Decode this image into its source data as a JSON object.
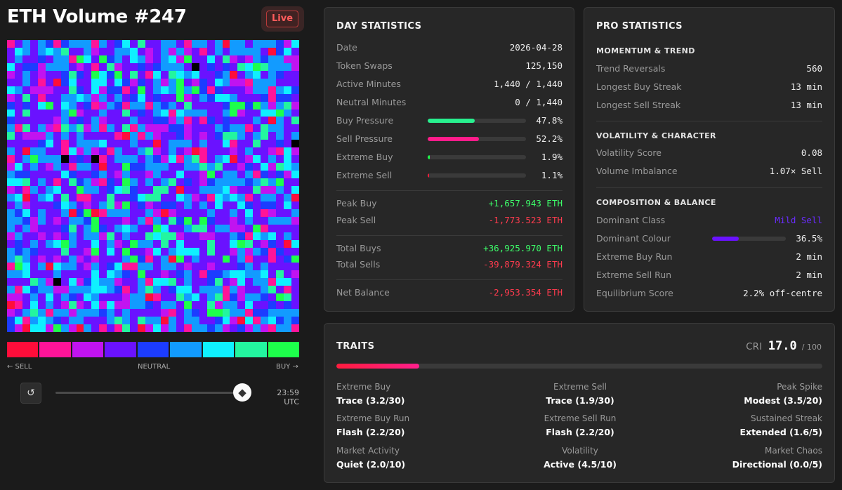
{
  "header": {
    "title": "ETH Volume #247",
    "live_label": "Live"
  },
  "palette": {
    "colors": [
      "#ff0d3a",
      "#ff1498",
      "#c113f0",
      "#6a12ff",
      "#1c3cff",
      "#129bff",
      "#0ff0ff",
      "#23f59f",
      "#1dff4b"
    ],
    "sell_label": "← SELL",
    "neutral_label": "NEUTRAL",
    "buy_label": "BUY →"
  },
  "grid_colors": [
    "#6a12ff",
    "#129bff",
    "#0ff0ff",
    "#c113f0",
    "#1c3cff",
    "#23f59f",
    "#ff1498",
    "#1dff4b",
    "#ff0d3a",
    "#000000"
  ],
  "controls": {
    "replay_icon": "↺",
    "eth_icon": "◆",
    "time": "23:59 UTC"
  },
  "day": {
    "title": "DAY STATISTICS",
    "rows": [
      {
        "label": "Date",
        "value": "2026-04-28"
      },
      {
        "label": "Token Swaps",
        "value": "125,150"
      },
      {
        "label": "Active Minutes",
        "value": "1,440 / 1,440"
      },
      {
        "label": "Neutral Minutes",
        "value": "0 / 1,440"
      }
    ],
    "bars": [
      {
        "label": "Buy Pressure",
        "value": "47.8%",
        "pct": 47.8,
        "color": "#28f08f"
      },
      {
        "label": "Sell Pressure",
        "value": "52.2%",
        "pct": 52.2,
        "color": "#ff1c8a"
      },
      {
        "label": "Extreme Buy",
        "value": "1.9%",
        "pct": 1.9,
        "color": "#1dff4b"
      },
      {
        "label": "Extreme Sell",
        "value": "1.1%",
        "pct": 1.1,
        "color": "#ff1c3d"
      }
    ],
    "peak_buy": {
      "label": "Peak Buy",
      "value": "+1,657.943 ETH"
    },
    "peak_sell": {
      "label": "Peak Sell",
      "value": "-1,773.523 ETH"
    },
    "total_buys": {
      "label": "Total Buys",
      "value": "+36,925.970 ETH"
    },
    "total_sells": {
      "label": "Total Sells",
      "value": "-39,879.324 ETH"
    },
    "net": {
      "label": "Net Balance",
      "value": "-2,953.354 ETH"
    }
  },
  "pro": {
    "title": "PRO STATISTICS",
    "momentum": {
      "title": "MOMENTUM & TREND",
      "rows": [
        {
          "label": "Trend Reversals",
          "value": "560"
        },
        {
          "label": "Longest Buy Streak",
          "value": "13 min"
        },
        {
          "label": "Longest Sell Streak",
          "value": "13 min"
        }
      ]
    },
    "volatility": {
      "title": "VOLATILITY & CHARACTER",
      "rows": [
        {
          "label": "Volatility Score",
          "value": "0.08"
        },
        {
          "label": "Volume Imbalance",
          "value": "1.07× Sell"
        }
      ]
    },
    "composition": {
      "title": "COMPOSITION & BALANCE",
      "dominant_class": {
        "label": "Dominant Class",
        "value": "Mild Sell"
      },
      "dominant_colour": {
        "label": "Dominant Colour",
        "value": "36.5%",
        "pct": 36.5,
        "color": "#6a12ff"
      },
      "rows": [
        {
          "label": "Extreme Buy Run",
          "value": "2 min"
        },
        {
          "label": "Extreme Sell Run",
          "value": "2 min"
        },
        {
          "label": "Equilibrium Score",
          "value": "2.2% off-centre"
        }
      ]
    }
  },
  "traits": {
    "title": "TRAITS",
    "cri_label": "CRI",
    "cri_value": "17.0",
    "cri_max": "/ 100",
    "cri_pct": 17.0,
    "items": [
      {
        "label": "Extreme Buy",
        "value": "Trace (3.2/30)"
      },
      {
        "label": "Extreme Sell",
        "value": "Trace (1.9/30)"
      },
      {
        "label": "Peak Spike",
        "value": "Modest (3.5/20)"
      },
      {
        "label": "Extreme Buy Run",
        "value": "Flash (2.2/20)"
      },
      {
        "label": "Extreme Sell Run",
        "value": "Flash (2.2/20)"
      },
      {
        "label": "Sustained Streak",
        "value": "Extended (1.6/5)"
      },
      {
        "label": "Market Activity",
        "value": "Quiet (2.0/10)"
      },
      {
        "label": "Volatility",
        "value": "Active (4.5/10)"
      },
      {
        "label": "Market Chaos",
        "value": "Directional (0.0/5)"
      }
    ]
  }
}
